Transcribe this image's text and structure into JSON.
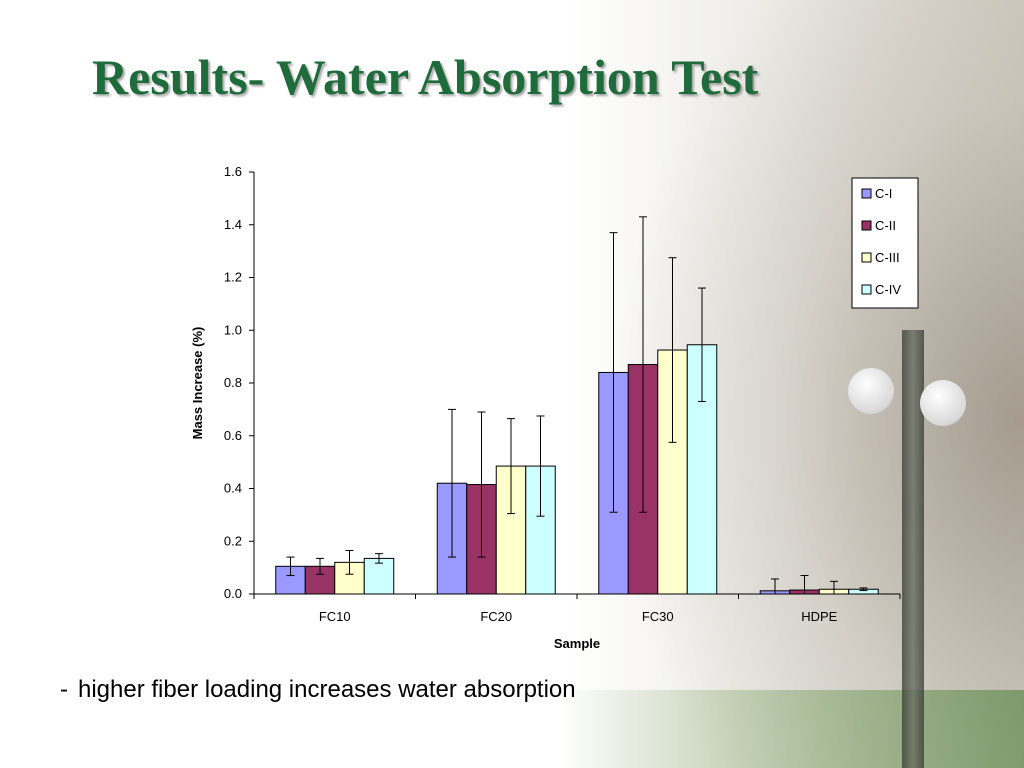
{
  "slide": {
    "title": "Results- Water Absorption Test",
    "bullet_marker": "-",
    "bullet_text": "higher fiber loading increases water absorption"
  },
  "chart_data": {
    "type": "bar",
    "categories": [
      "FC10",
      "FC20",
      "FC30",
      "HDPE"
    ],
    "series": [
      {
        "name": "C-I",
        "color": "#9999ff",
        "values": [
          0.105,
          0.42,
          0.84,
          0.012
        ],
        "error": [
          0.035,
          0.28,
          0.53,
          0.045
        ]
      },
      {
        "name": "C-II",
        "color": "#993366",
        "values": [
          0.105,
          0.415,
          0.87,
          0.015
        ],
        "error": [
          0.03,
          0.275,
          0.56,
          0.055
        ]
      },
      {
        "name": "C-III",
        "color": "#ffffcc",
        "values": [
          0.12,
          0.485,
          0.925,
          0.018
        ],
        "error": [
          0.045,
          0.18,
          0.35,
          0.03
        ]
      },
      {
        "name": "C-IV",
        "color": "#ccffff",
        "values": [
          0.135,
          0.485,
          0.945,
          0.018
        ],
        "error": [
          0.018,
          0.19,
          0.215,
          0.005
        ]
      }
    ],
    "ylim": [
      0,
      1.6
    ],
    "yticks": [
      "0.0",
      "0.2",
      "0.4",
      "0.6",
      "0.8",
      "1.0",
      "1.2",
      "1.4",
      "1.6"
    ],
    "xlabel": "Sample",
    "ylabel": "Mass Increase (%)",
    "legend_position": "top-right",
    "grid": false
  }
}
